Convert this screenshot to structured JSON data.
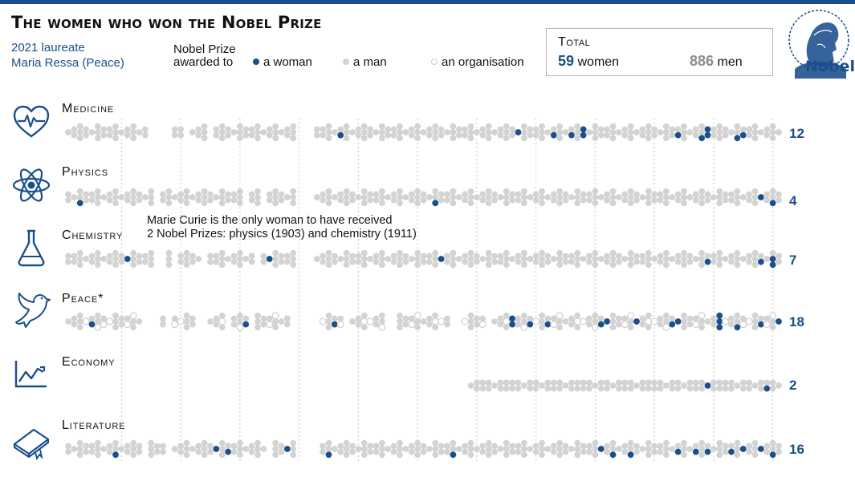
{
  "title": "The women who won the Nobel Prize",
  "laureate": {
    "line1": "2021 laureate",
    "line2": "Maria Ressa (Peace)"
  },
  "legend": {
    "title_line1": "Nobel Prize",
    "title_line2": "awarded to",
    "woman": "a woman",
    "man": "a man",
    "organisation": "an organisation"
  },
  "total": {
    "label": "Total",
    "women_count": "59",
    "women_label": "women",
    "men_count": "886",
    "men_label": "men"
  },
  "logo_text": "Nobel",
  "annotation": {
    "line1": "Marie Curie is the only woman to have received",
    "line2": "2 Nobel Prizes: physics (1903) and chemistry (1911)"
  },
  "colors": {
    "woman": "#1a4f8c",
    "man": "#d3d3d3",
    "organisation_stroke": "#cfcfcf",
    "accent": "#1a4f8c"
  },
  "chart_data": {
    "type": "scatter",
    "encoding": "dot strip: one dot per laureate, grouped by prize year",
    "x_range_years": [
      1901,
      2021
    ],
    "categories": [
      {
        "name": "Medicine",
        "icon": "heart-icon",
        "women_count": "12",
        "women_award_years": [
          1947,
          1977,
          1983,
          1986,
          1988,
          1988,
          2004,
          2008,
          2009,
          2009,
          2014,
          2015
        ],
        "gap_years": [
          1915,
          1916,
          1917,
          1918,
          1921,
          1925,
          1940,
          1941,
          1942
        ]
      },
      {
        "name": "Physics",
        "icon": "atom-icon",
        "women_count": "4",
        "women_award_years": [
          1903,
          1963,
          2018,
          2020
        ],
        "gap_years": [
          1916,
          1931,
          1934,
          1940,
          1941,
          1942
        ]
      },
      {
        "name": "Chemistry",
        "icon": "flask-icon",
        "women_count": "7",
        "women_award_years": [
          1911,
          1935,
          1964,
          2009,
          2018,
          2020,
          2020
        ],
        "gap_years": [
          1916,
          1917,
          1919,
          1924,
          1933,
          1940,
          1941,
          1942
        ]
      },
      {
        "name": "Peace*",
        "icon": "dove-icon",
        "women_count": "18",
        "women_award_years": [
          1905,
          1931,
          1946,
          1976,
          1976,
          1979,
          1982,
          1991,
          1992,
          1997,
          2003,
          2004,
          2011,
          2011,
          2011,
          2014,
          2018,
          2021
        ],
        "gap_years": [
          1914,
          1915,
          1916,
          1918,
          1923,
          1924,
          1928,
          1932,
          1939,
          1940,
          1941,
          1942,
          1943,
          1948,
          1955,
          1956,
          1966,
          1967,
          1972
        ]
      },
      {
        "name": "Economy",
        "icon": "chart-icon",
        "women_count": "2",
        "women_award_years": [
          2009,
          2019
        ],
        "start_year": 1969,
        "gap_years": []
      },
      {
        "name": "Literature",
        "icon": "book-icon",
        "women_count": "16",
        "women_award_years": [
          1909,
          1926,
          1928,
          1938,
          1945,
          1966,
          1991,
          1993,
          1996,
          2004,
          2007,
          2009,
          2013,
          2015,
          2018,
          2020
        ],
        "gap_years": [
          1914,
          1918,
          1935,
          1940,
          1941,
          1942,
          1943
        ]
      }
    ]
  }
}
